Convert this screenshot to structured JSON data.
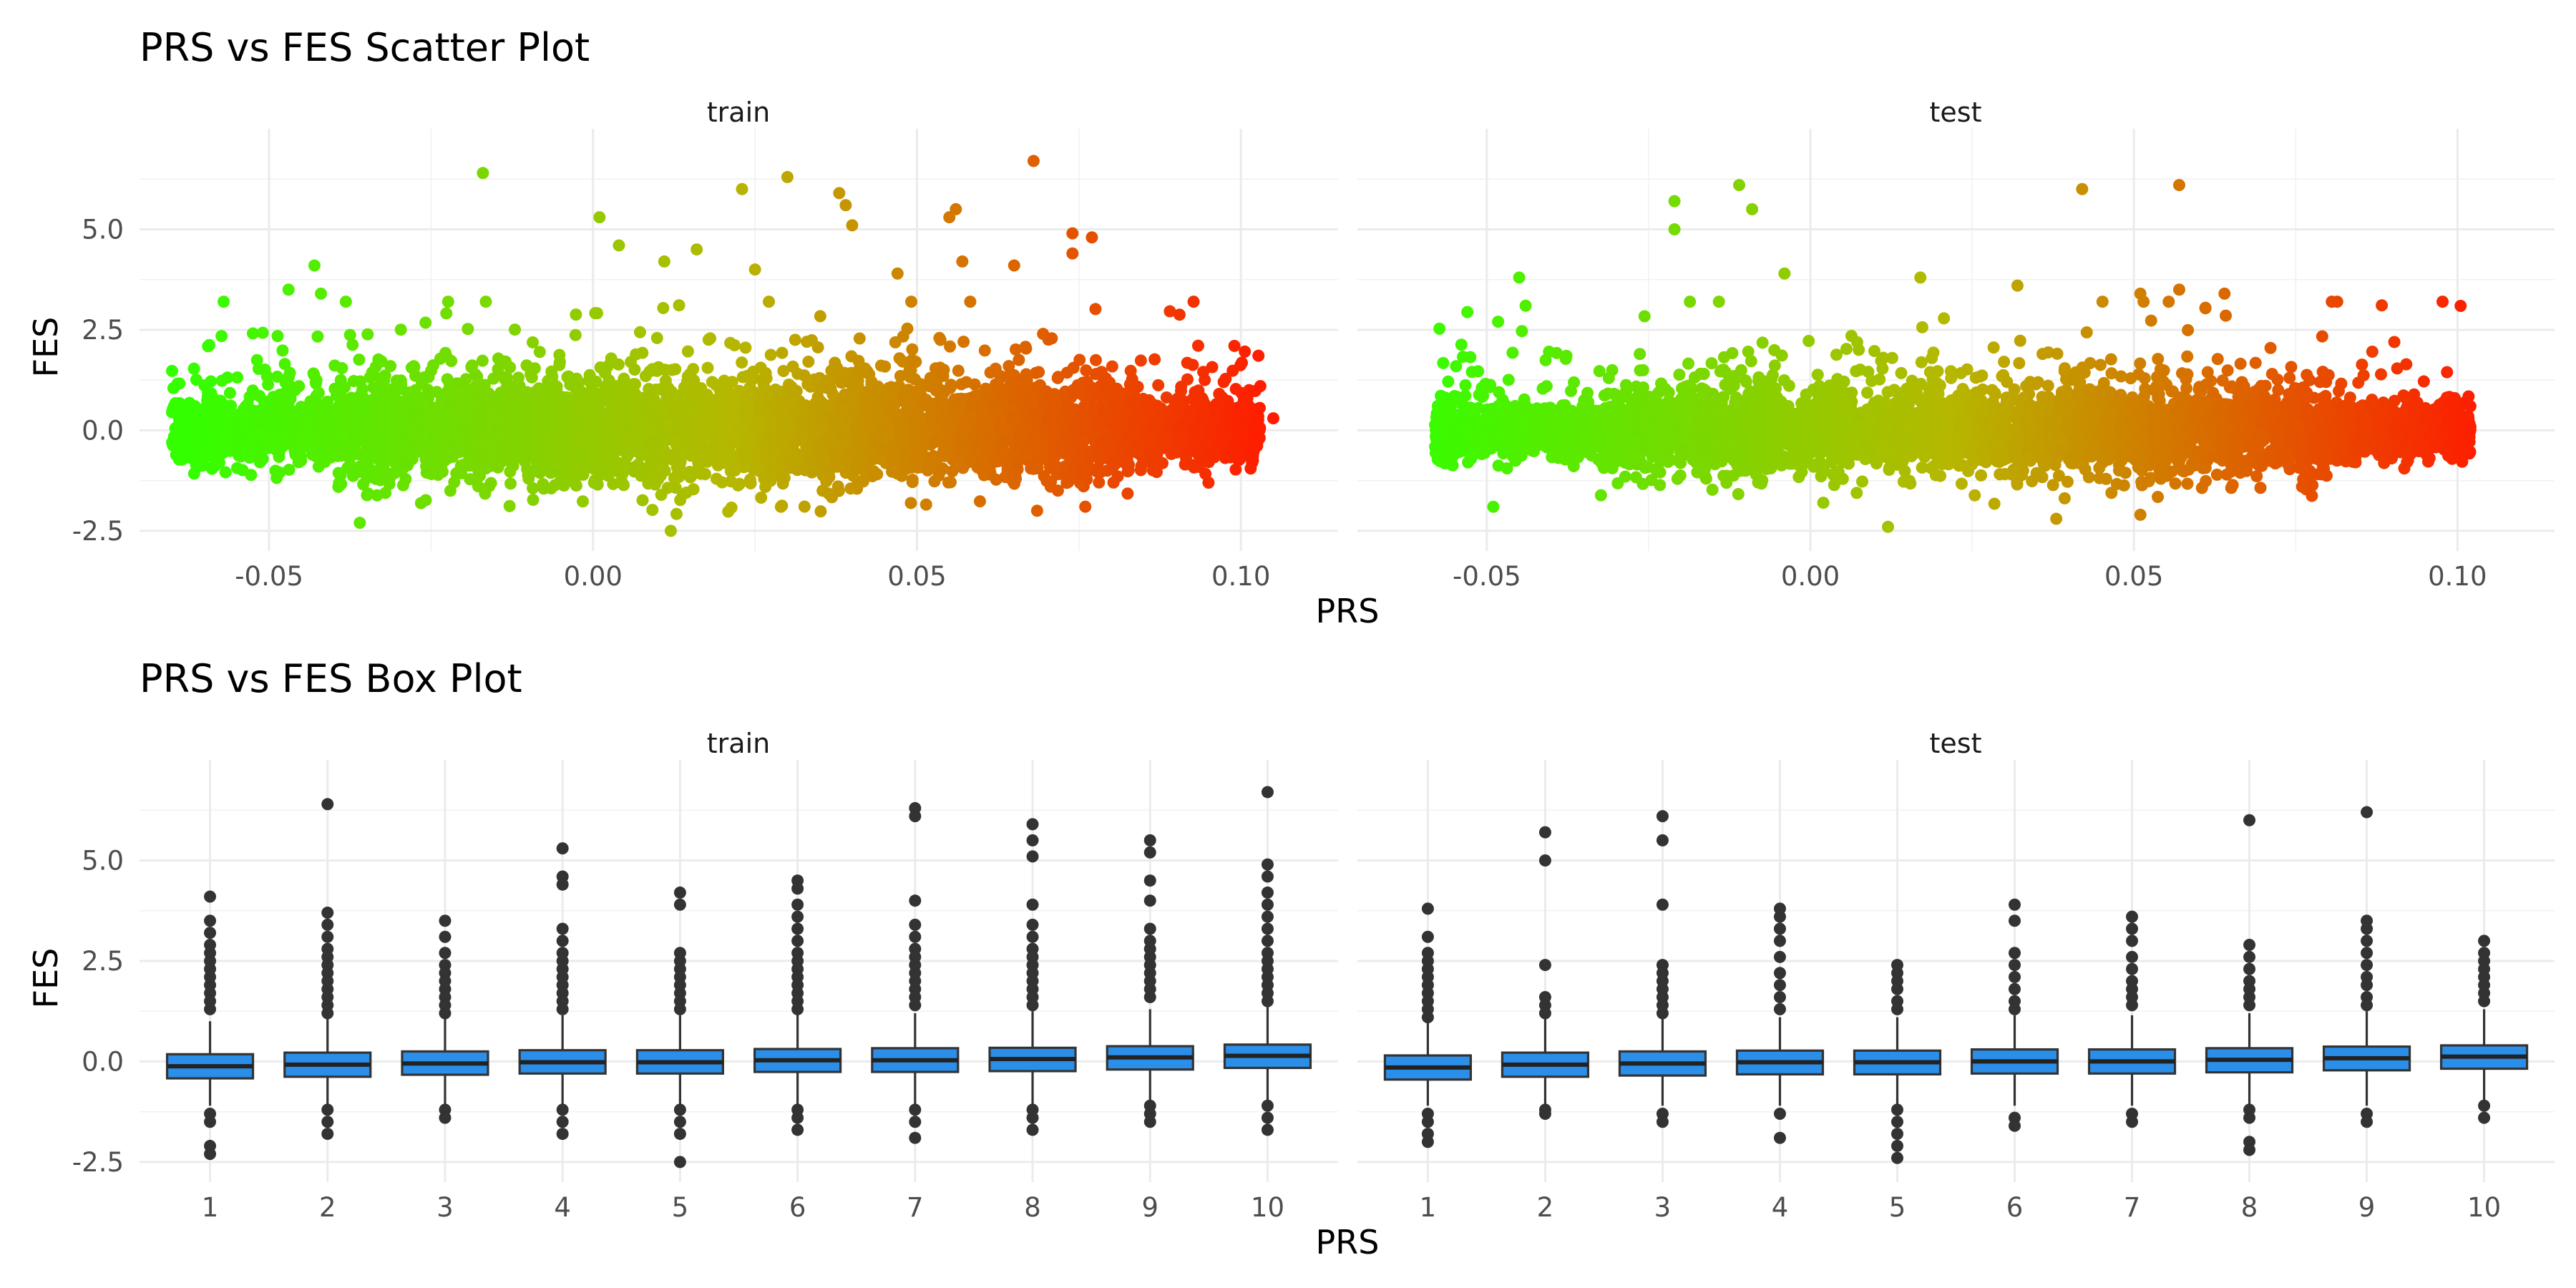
{
  "chart_data": [
    {
      "type": "scatter",
      "title": "PRS vs FES Scatter Plot",
      "xlabel": "PRS",
      "ylabel": "FES",
      "facets": [
        "train",
        "test"
      ],
      "xlim": [
        -0.07,
        0.115
      ],
      "ylim": [
        -3.0,
        7.5
      ],
      "x_ticks": [
        "-0.05",
        "0.00",
        "0.05",
        "0.10"
      ],
      "y_ticks": [
        "-2.5",
        "0.0",
        "2.5",
        "5.0"
      ],
      "color_scale": {
        "low": "#33ff00",
        "mid": "#b5b800",
        "high": "#ff1a00",
        "mapped_to": "PRS"
      },
      "grid": true,
      "series": [
        {
          "facet": "train",
          "cloud": {
            "x_range": [
              -0.065,
              0.103
            ],
            "y_center": 0.0,
            "y_spread": 0.65
          },
          "outliers": [
            {
              "x": -0.017,
              "y": 6.4
            },
            {
              "x": 0.068,
              "y": 6.7
            },
            {
              "x": 0.03,
              "y": 6.3
            },
            {
              "x": 0.023,
              "y": 6.0
            },
            {
              "x": 0.038,
              "y": 5.9
            },
            {
              "x": 0.001,
              "y": 5.3
            },
            {
              "x": 0.056,
              "y": 5.5
            },
            {
              "x": 0.039,
              "y": 5.6
            },
            {
              "x": 0.04,
              "y": 5.1
            },
            {
              "x": 0.055,
              "y": 5.3
            },
            {
              "x": 0.074,
              "y": 4.9
            },
            {
              "x": 0.077,
              "y": 4.8
            },
            {
              "x": 0.074,
              "y": 4.4
            },
            {
              "x": 0.004,
              "y": 4.6
            },
            {
              "x": -0.043,
              "y": 4.1
            },
            {
              "x": 0.016,
              "y": 4.5
            },
            {
              "x": 0.011,
              "y": 4.2
            },
            {
              "x": 0.057,
              "y": 4.2
            },
            {
              "x": 0.065,
              "y": 4.1
            },
            {
              "x": 0.025,
              "y": 4.0
            },
            {
              "x": 0.047,
              "y": 3.9
            },
            {
              "x": -0.047,
              "y": 3.5
            },
            {
              "x": -0.042,
              "y": 3.4
            },
            {
              "x": 0.099,
              "y": 2.1
            },
            {
              "x": 0.103,
              "y": 1.1
            },
            {
              "x": 0.101,
              "y": 0.8
            },
            {
              "x": 0.105,
              "y": 0.3
            },
            {
              "x": 0.096,
              "y": -0.6
            },
            {
              "x": 0.095,
              "y": -1.3
            },
            {
              "x": 0.012,
              "y": -2.5
            },
            {
              "x": -0.036,
              "y": -2.3
            },
            {
              "x": -0.063,
              "y": -0.2
            },
            {
              "x": 0.029,
              "y": -1.9
            }
          ]
        },
        {
          "facet": "test",
          "cloud": {
            "x_range": [
              -0.058,
              0.102
            ],
            "y_center": 0.0,
            "y_spread": 0.55
          },
          "outliers": [
            {
              "x": -0.011,
              "y": 6.1
            },
            {
              "x": 0.057,
              "y": 6.1
            },
            {
              "x": -0.021,
              "y": 5.7
            },
            {
              "x": -0.009,
              "y": 5.5
            },
            {
              "x": 0.042,
              "y": 6.0
            },
            {
              "x": -0.021,
              "y": 5.0
            },
            {
              "x": -0.045,
              "y": 3.8
            },
            {
              "x": -0.004,
              "y": 3.9
            },
            {
              "x": 0.017,
              "y": 3.8
            },
            {
              "x": 0.032,
              "y": 3.6
            },
            {
              "x": 0.051,
              "y": 3.4
            },
            {
              "x": 0.064,
              "y": 3.4
            },
            {
              "x": 0.057,
              "y": 3.5
            },
            {
              "x": -0.044,
              "y": 3.1
            },
            {
              "x": 0.099,
              "y": 0.7
            },
            {
              "x": 0.102,
              "y": 0.6
            },
            {
              "x": 0.101,
              "y": -0.4
            },
            {
              "x": 0.096,
              "y": -0.1
            },
            {
              "x": 0.092,
              "y": 0.8
            },
            {
              "x": 0.038,
              "y": -2.2
            },
            {
              "x": 0.051,
              "y": -2.1
            },
            {
              "x": 0.012,
              "y": -2.4
            },
            {
              "x": -0.049,
              "y": -1.9
            },
            {
              "x": 0.002,
              "y": -1.8
            }
          ]
        }
      ]
    },
    {
      "type": "box",
      "title": "PRS vs FES Box Plot",
      "xlabel": "PRS",
      "ylabel": "FES",
      "facets": [
        "train",
        "test"
      ],
      "categories": [
        "1",
        "2",
        "3",
        "4",
        "5",
        "6",
        "7",
        "8",
        "9",
        "10"
      ],
      "ylim": [
        -3.0,
        7.5
      ],
      "y_ticks": [
        "-2.5",
        "0.0",
        "2.5",
        "5.0"
      ],
      "box_fill": "#2b8ee8",
      "grid": true,
      "series": [
        {
          "facet": "train",
          "boxes": [
            {
              "q1": -0.42,
              "median": -0.12,
              "q3": 0.18,
              "whisker_low": -1.1,
              "whisker_high": 1.0,
              "outliers": [
                4.1,
                3.5,
                3.2,
                2.9,
                2.7,
                2.5,
                2.3,
                2.1,
                1.9,
                1.7,
                1.5,
                1.3,
                -1.3,
                -1.5,
                -2.1,
                -2.3
              ]
            },
            {
              "q1": -0.38,
              "median": -0.08,
              "q3": 0.22,
              "whisker_low": -1.1,
              "whisker_high": 1.1,
              "outliers": [
                6.4,
                3.7,
                3.4,
                3.1,
                2.8,
                2.6,
                2.4,
                2.2,
                2.0,
                1.8,
                1.6,
                1.4,
                1.2,
                -1.2,
                -1.5,
                -1.8
              ]
            },
            {
              "q1": -0.33,
              "median": -0.05,
              "q3": 0.25,
              "whisker_low": -1.1,
              "whisker_high": 1.1,
              "outliers": [
                3.5,
                3.1,
                2.7,
                2.4,
                2.2,
                2.0,
                1.8,
                1.6,
                1.4,
                1.2,
                -1.2,
                -1.4
              ]
            },
            {
              "q1": -0.3,
              "median": -0.02,
              "q3": 0.28,
              "whisker_low": -1.1,
              "whisker_high": 1.15,
              "outliers": [
                5.3,
                4.6,
                4.4,
                3.3,
                3.0,
                2.7,
                2.5,
                2.3,
                2.1,
                1.9,
                1.7,
                1.5,
                1.3,
                -1.2,
                -1.5,
                -1.8
              ]
            },
            {
              "q1": -0.3,
              "median": -0.02,
              "q3": 0.28,
              "whisker_low": -1.1,
              "whisker_high": 1.15,
              "outliers": [
                4.2,
                3.9,
                2.7,
                2.5,
                2.3,
                2.1,
                1.9,
                1.7,
                1.5,
                1.3,
                -1.2,
                -1.5,
                -1.8,
                -2.5
              ]
            },
            {
              "q1": -0.26,
              "median": 0.03,
              "q3": 0.31,
              "whisker_low": -1.1,
              "whisker_high": 1.2,
              "outliers": [
                4.5,
                4.3,
                3.9,
                3.6,
                3.3,
                3.0,
                2.7,
                2.5,
                2.3,
                2.1,
                1.9,
                1.7,
                1.5,
                1.3,
                -1.2,
                -1.4,
                -1.7
              ]
            },
            {
              "q1": -0.26,
              "median": 0.03,
              "q3": 0.33,
              "whisker_low": -1.1,
              "whisker_high": 1.2,
              "outliers": [
                6.3,
                6.1,
                4.0,
                3.4,
                3.1,
                2.8,
                2.6,
                2.4,
                2.2,
                2.0,
                1.8,
                1.6,
                1.4,
                -1.2,
                -1.5,
                -1.9
              ]
            },
            {
              "q1": -0.24,
              "median": 0.06,
              "q3": 0.34,
              "whisker_low": -1.1,
              "whisker_high": 1.25,
              "outliers": [
                5.9,
                5.5,
                5.1,
                3.9,
                3.4,
                3.1,
                2.8,
                2.6,
                2.4,
                2.2,
                2.0,
                1.8,
                1.6,
                1.4,
                -1.2,
                -1.4,
                -1.7
              ]
            },
            {
              "q1": -0.2,
              "median": 0.1,
              "q3": 0.38,
              "whisker_low": -1.0,
              "whisker_high": 1.3,
              "outliers": [
                5.5,
                5.2,
                4.5,
                4.0,
                3.3,
                3.0,
                2.8,
                2.6,
                2.4,
                2.2,
                2.0,
                1.8,
                1.6,
                -1.1,
                -1.3,
                -1.5
              ]
            },
            {
              "q1": -0.16,
              "median": 0.14,
              "q3": 0.42,
              "whisker_low": -1.0,
              "whisker_high": 1.35,
              "outliers": [
                6.7,
                4.9,
                4.6,
                4.2,
                3.9,
                3.6,
                3.3,
                3.0,
                2.7,
                2.5,
                2.3,
                2.1,
                1.9,
                1.7,
                1.5,
                -1.1,
                -1.4,
                -1.7
              ]
            }
          ]
        },
        {
          "facet": "test",
          "boxes": [
            {
              "q1": -0.45,
              "median": -0.15,
              "q3": 0.15,
              "whisker_low": -1.1,
              "whisker_high": 0.95,
              "outliers": [
                3.8,
                3.1,
                2.7,
                2.5,
                2.3,
                2.1,
                1.9,
                1.7,
                1.5,
                1.3,
                1.1,
                -1.3,
                -1.5,
                -1.8,
                -2.0
              ]
            },
            {
              "q1": -0.38,
              "median": -0.08,
              "q3": 0.22,
              "whisker_low": -1.1,
              "whisker_high": 1.05,
              "outliers": [
                5.7,
                5.0,
                2.4,
                1.6,
                1.4,
                1.2,
                -1.2,
                -1.3
              ]
            },
            {
              "q1": -0.35,
              "median": -0.05,
              "q3": 0.25,
              "whisker_low": -1.1,
              "whisker_high": 1.1,
              "outliers": [
                6.1,
                5.5,
                3.9,
                2.4,
                2.2,
                2.0,
                1.8,
                1.6,
                1.4,
                1.2,
                -1.3,
                -1.5
              ]
            },
            {
              "q1": -0.32,
              "median": -0.02,
              "q3": 0.27,
              "whisker_low": -1.1,
              "whisker_high": 1.1,
              "outliers": [
                3.8,
                3.6,
                3.3,
                3.0,
                2.6,
                2.2,
                1.9,
                1.6,
                1.3,
                -1.3,
                -1.9
              ]
            },
            {
              "q1": -0.32,
              "median": -0.02,
              "q3": 0.27,
              "whisker_low": -1.1,
              "whisker_high": 1.1,
              "outliers": [
                2.4,
                2.2,
                2.0,
                1.8,
                1.5,
                1.3,
                -1.2,
                -1.5,
                -1.8,
                -2.1,
                -2.4
              ]
            },
            {
              "q1": -0.3,
              "median": 0.0,
              "q3": 0.3,
              "whisker_low": -1.1,
              "whisker_high": 1.15,
              "outliers": [
                3.9,
                3.5,
                2.7,
                2.4,
                2.1,
                1.8,
                1.5,
                1.3,
                -1.4,
                -1.6
              ]
            },
            {
              "q1": -0.3,
              "median": 0.0,
              "q3": 0.3,
              "whisker_low": -1.1,
              "whisker_high": 1.15,
              "outliers": [
                3.6,
                3.3,
                3.0,
                2.6,
                2.3,
                2.0,
                1.8,
                1.6,
                1.4,
                -1.3,
                -1.5
              ]
            },
            {
              "q1": -0.27,
              "median": 0.04,
              "q3": 0.33,
              "whisker_low": -1.1,
              "whisker_high": 1.2,
              "outliers": [
                6.0,
                2.9,
                2.6,
                2.3,
                2.0,
                1.8,
                1.6,
                1.4,
                -1.2,
                -1.4,
                -2.0,
                -2.2
              ]
            },
            {
              "q1": -0.22,
              "median": 0.08,
              "q3": 0.37,
              "whisker_low": -1.1,
              "whisker_high": 1.25,
              "outliers": [
                6.2,
                3.5,
                3.3,
                3.0,
                2.7,
                2.4,
                2.1,
                1.9,
                1.6,
                1.4,
                -1.3,
                -1.5
              ]
            },
            {
              "q1": -0.18,
              "median": 0.12,
              "q3": 0.4,
              "whisker_low": -1.0,
              "whisker_high": 1.3,
              "outliers": [
                3.0,
                2.7,
                2.5,
                2.3,
                2.1,
                1.9,
                1.7,
                1.5,
                -1.1,
                -1.4
              ]
            }
          ]
        }
      ]
    }
  ]
}
